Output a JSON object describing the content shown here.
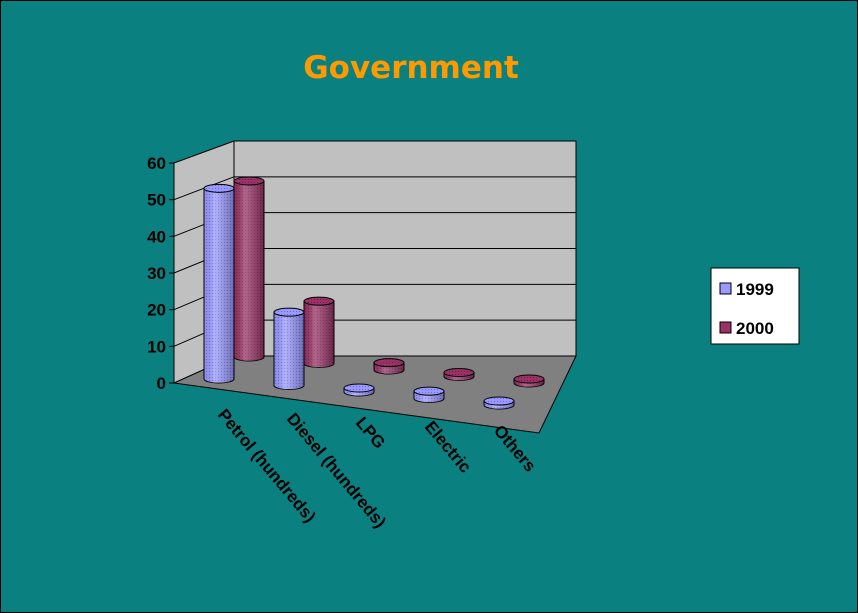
{
  "colors": {
    "background": "#0a8080",
    "title": "#ff9900",
    "wall": "#c0c0c0",
    "floor": "#808080",
    "series_1999": "#9999ff",
    "series_2000": "#993366"
  },
  "chart_data": {
    "type": "bar",
    "style": "3d-cylinder",
    "title": "Government",
    "xlabel": "",
    "ylabel": "",
    "categories": [
      "Petrol (hundreds)",
      "Diesel (hundreds)",
      "LPG",
      "Electric",
      "Others"
    ],
    "series": [
      {
        "name": "1999",
        "values": [
          52,
          20,
          0,
          2,
          1
        ]
      },
      {
        "name": "2000",
        "values": [
          48,
          17,
          2,
          0.5,
          0.5
        ]
      }
    ],
    "ylim": [
      0,
      60
    ],
    "yticks": [
      "0",
      "10",
      "20",
      "30",
      "40",
      "50",
      "60"
    ],
    "grid": true,
    "legend_position": "right"
  }
}
